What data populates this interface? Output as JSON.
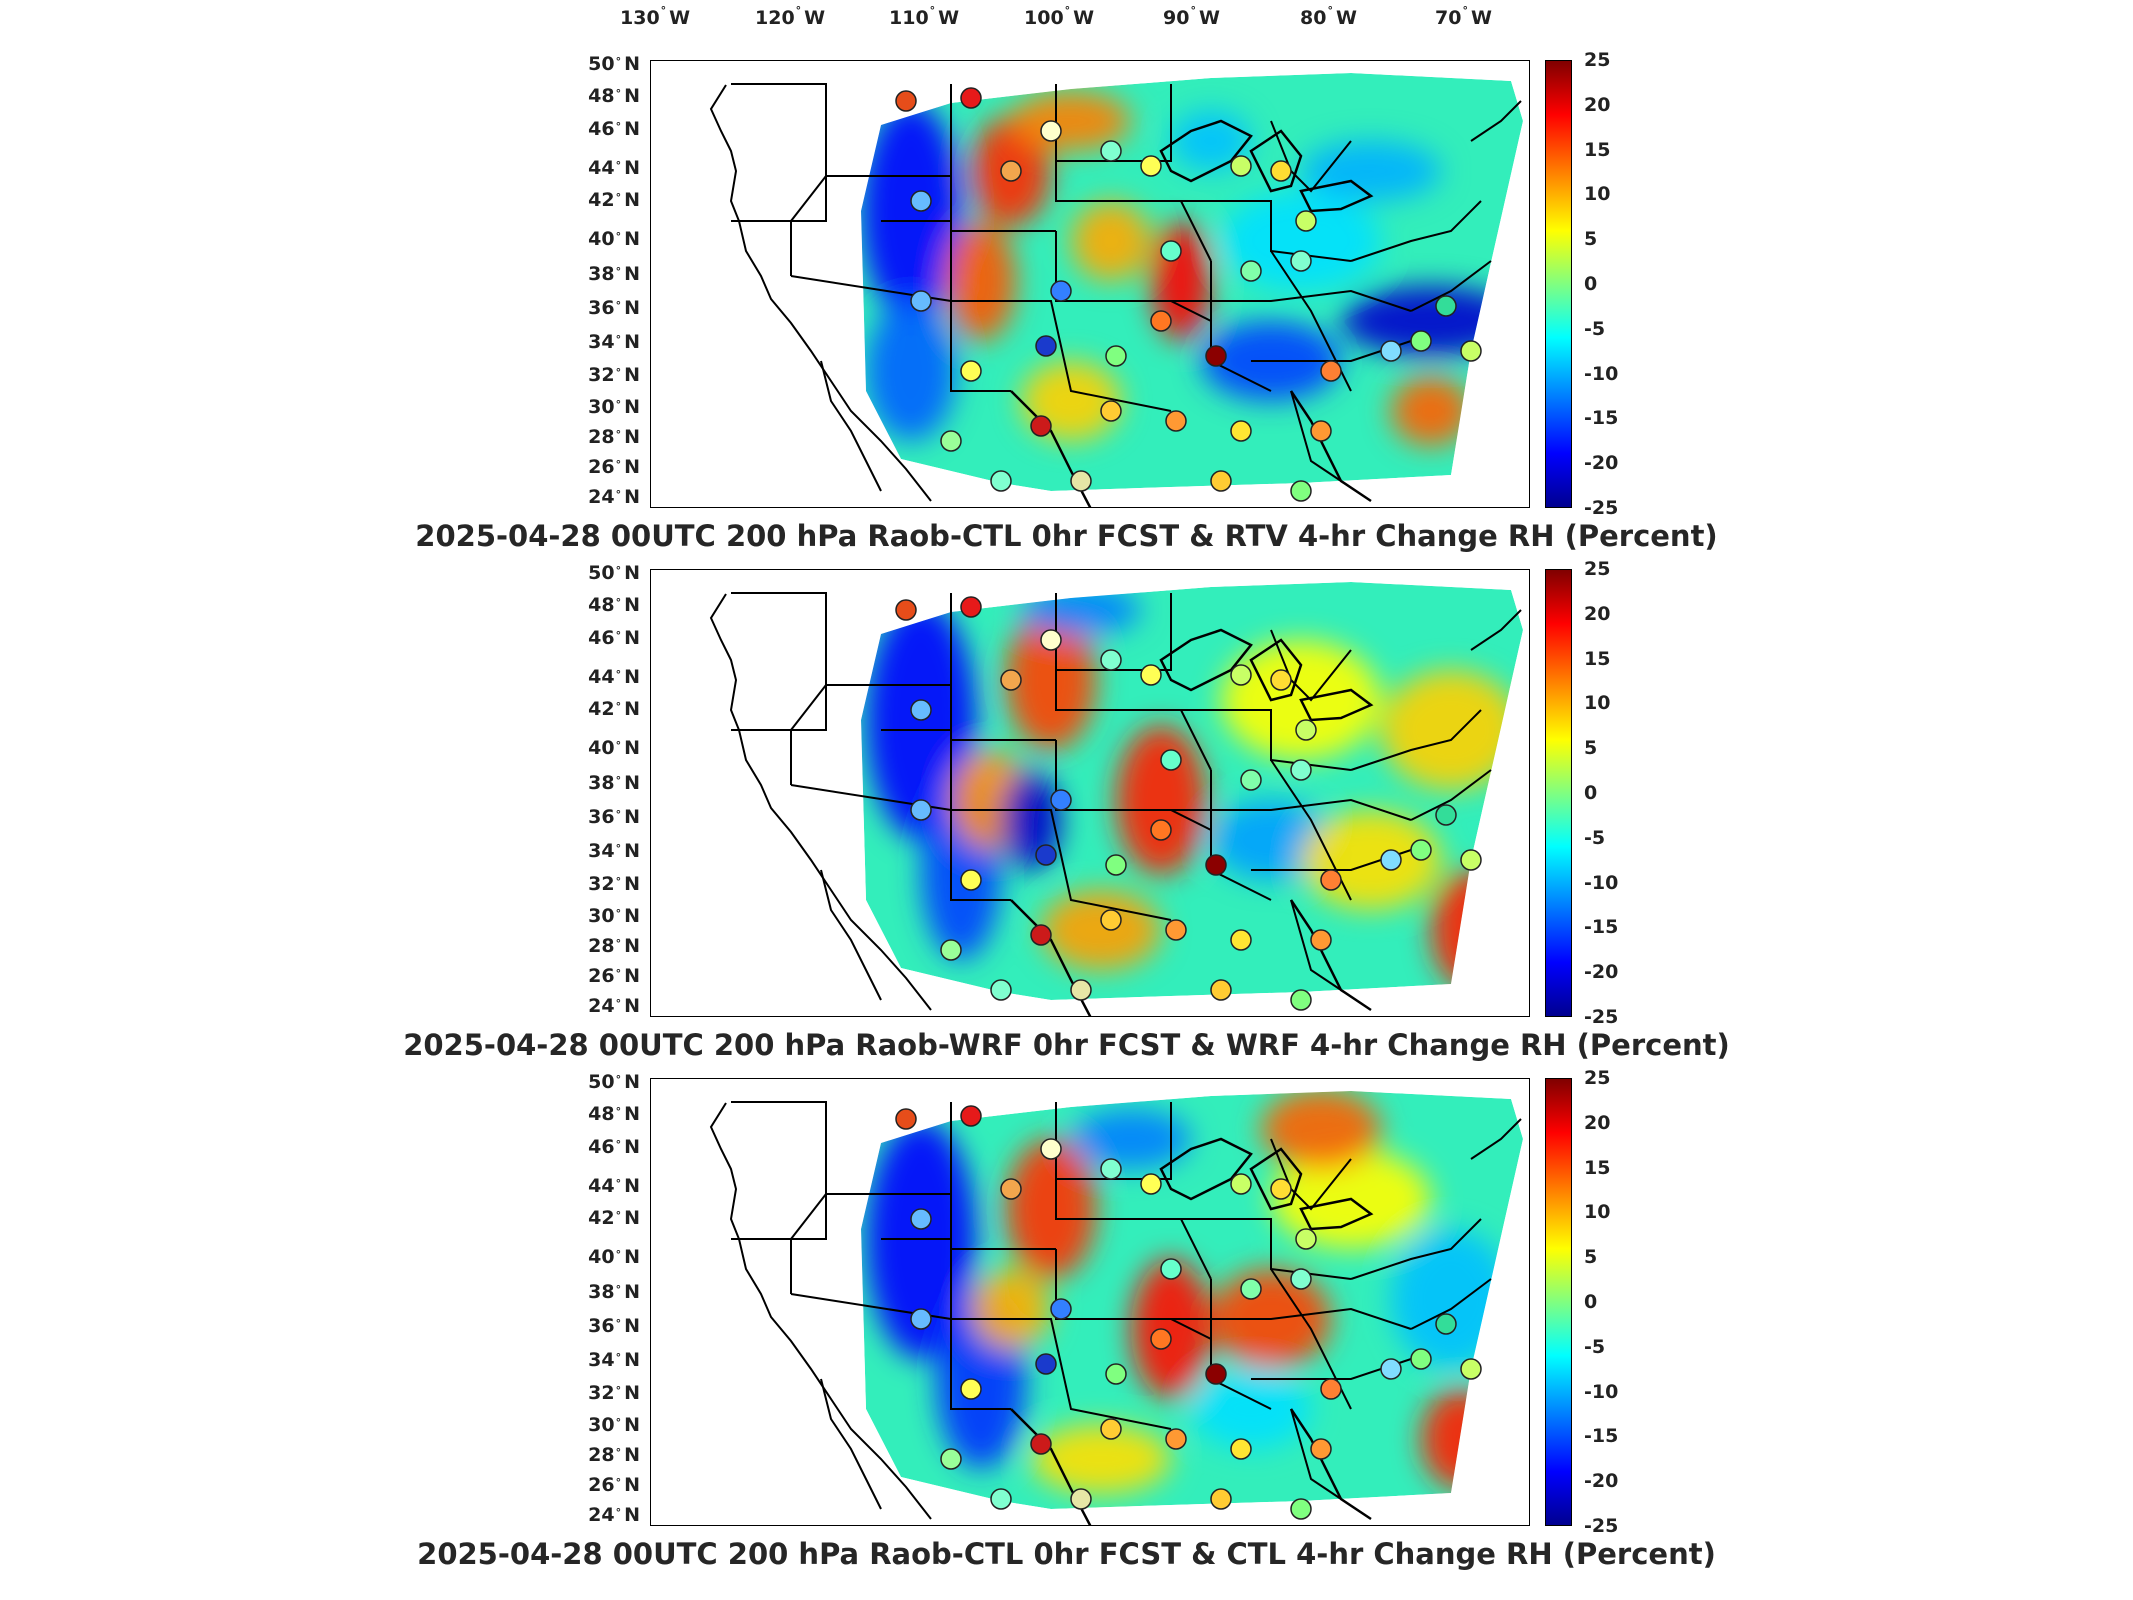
{
  "lon_labels": [
    "130",
    "120",
    "110",
    "100",
    "90",
    "80",
    "70"
  ],
  "lon_suffix": "W",
  "lat_labels": [
    "50",
    "48",
    "46",
    "44",
    "42",
    "40",
    "38",
    "36",
    "34",
    "32",
    "30",
    "28",
    "26",
    "24"
  ],
  "lat_suffix": "N",
  "colorbar_ticks": [
    "25",
    "20",
    "15",
    "10",
    "5",
    "0",
    "-5",
    "-10",
    "-15",
    "-20",
    "-25"
  ],
  "colormap": [
    "#800000",
    "#ff0000",
    "#ff8000",
    "#ffff00",
    "#80ff80",
    "#00ffff",
    "#0080ff",
    "#0000ff",
    "#00008f"
  ],
  "panels": [
    {
      "title": "2025-04-28 00UTC 200 hPa Raob-CTL 0hr FCST & RTV 4-hr Change RH (Percent)"
    },
    {
      "title": "2025-04-28 00UTC 200 hPa Raob-WRF 0hr FCST & WRF 4-hr Change RH (Percent)"
    },
    {
      "title": "2025-04-28 00UTC 200 hPa Raob-CTL 0hr FCST & CTL 4-hr Change RH (Percent)"
    }
  ]
}
